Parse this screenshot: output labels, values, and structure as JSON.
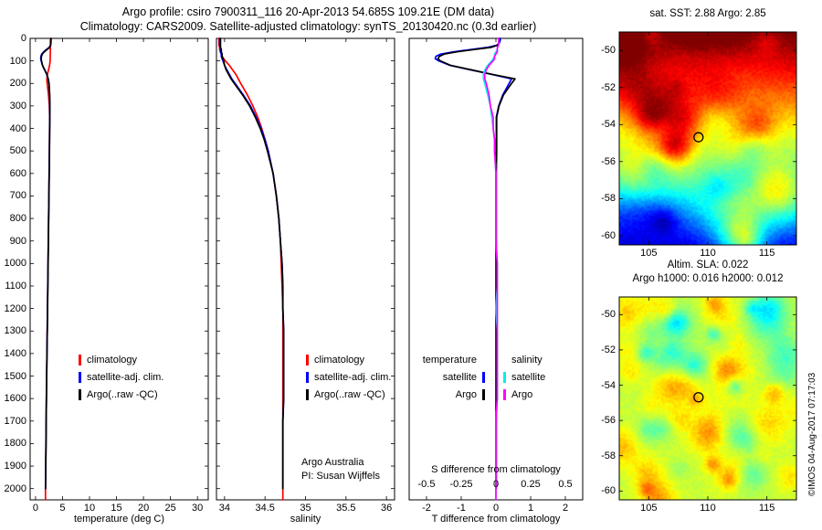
{
  "title": {
    "line1": "Argo profile: csiro 7900311_116 20-Apr-2013 54.685S 109.21E (DM data)",
    "line2": "Climatology: CARS2009. Satellite-adjusted climatology: synTS_20130420.nc (0.3d earlier)"
  },
  "watermark": "©IMOS 04-Aug-2017 07:17:03",
  "colors": {
    "climatology": "#ff0000",
    "satellite_adjusted": "#0000ff",
    "argo": "#000000",
    "salinity_satellite": "#00eeee",
    "salinity_argo": "#ff00ff"
  },
  "chart_data": [
    {
      "id": "temperature_profile",
      "type": "line",
      "xlabel": "temperature (deg C)",
      "ylabel": "",
      "xlim": [
        -1,
        32
      ],
      "ylim": [
        0,
        2050
      ],
      "xticks": [
        0,
        5,
        10,
        15,
        20,
        25,
        30
      ],
      "yticks": [
        0,
        100,
        200,
        300,
        400,
        500,
        600,
        700,
        800,
        900,
        1000,
        1100,
        1200,
        1300,
        1400,
        1500,
        1600,
        1700,
        1800,
        1900,
        2000
      ],
      "y_axis": "pressure (dbar), increasing downward",
      "legend": [
        "climatology",
        "satellite-adj. clim.",
        "Argo(..raw -QC)"
      ],
      "depths": [
        0,
        10,
        20,
        30,
        40,
        50,
        60,
        70,
        80,
        90,
        100,
        120,
        140,
        160,
        180,
        200,
        250,
        300,
        350,
        400,
        450,
        500,
        600,
        700,
        800,
        900,
        1000,
        1100,
        1200,
        1300,
        1400,
        1500,
        1600,
        1700,
        1800,
        1900,
        2000
      ],
      "series": [
        {
          "id": "climatology",
          "name": "climatology",
          "color": "#ff0000",
          "depth": [
            0,
            10,
            20,
            30,
            40,
            50,
            60,
            70,
            80,
            90,
            100,
            120,
            140,
            160,
            180,
            200,
            250,
            300,
            350,
            400,
            450,
            500,
            600,
            700,
            800,
            900,
            1000,
            1100,
            1200,
            1300,
            1400,
            1500,
            1600,
            1700,
            1800,
            1900,
            2000,
            2050
          ],
          "values": [
            2.75,
            2.75,
            2.75,
            2.75,
            2.75,
            2.75,
            2.74,
            2.74,
            2.73,
            2.72,
            2.7,
            2.6,
            2.4,
            2.2,
            2.1,
            2.15,
            2.4,
            2.56,
            2.62,
            2.6,
            2.58,
            2.56,
            2.52,
            2.47,
            2.42,
            2.37,
            2.32,
            2.27,
            2.22,
            2.17,
            2.11,
            2.06,
            2.01,
            1.97,
            1.93,
            1.89,
            1.85,
            1.84
          ]
        },
        {
          "id": "satellite_adj_clim",
          "name": "satellite-adj. clim.",
          "color": "#0000ff",
          "values": [
            2.88,
            2.87,
            2.85,
            2.78,
            2.5,
            2.0,
            1.5,
            1.15,
            1.0,
            0.97,
            1.05,
            1.28,
            1.68,
            2.08,
            2.33,
            2.49,
            2.6,
            2.64,
            2.63,
            2.61,
            2.59,
            2.57,
            2.52,
            2.47,
            2.42,
            2.37,
            2.32,
            2.27,
            2.22,
            2.17,
            2.11,
            2.06,
            2.01,
            1.97,
            1.93,
            1.89,
            1.85
          ]
        },
        {
          "id": "argo_raw_qc",
          "name": "Argo(..raw -QC)",
          "color": "#000000",
          "values": [
            2.85,
            2.84,
            2.83,
            2.8,
            2.6,
            2.1,
            1.6,
            1.25,
            1.1,
            1.05,
            1.1,
            1.3,
            1.7,
            2.1,
            2.35,
            2.5,
            2.62,
            2.65,
            2.64,
            2.62,
            2.6,
            2.58,
            2.53,
            2.48,
            2.43,
            2.38,
            2.33,
            2.28,
            2.23,
            2.18,
            2.12,
            2.07,
            2.02,
            1.98,
            1.94,
            1.9,
            1.86
          ]
        }
      ]
    },
    {
      "id": "salinity_profile",
      "type": "line",
      "xlabel": "salinity",
      "ylabel": "",
      "xlim": [
        33.9,
        36.1
      ],
      "ylim": [
        0,
        2050
      ],
      "xticks": [
        34,
        34.5,
        35,
        35.5,
        36
      ],
      "yticks": [
        0,
        100,
        200,
        300,
        400,
        500,
        600,
        700,
        800,
        900,
        1000,
        1100,
        1200,
        1300,
        1400,
        1500,
        1600,
        1700,
        1800,
        1900,
        2000
      ],
      "legend": [
        "climatology",
        "satellite-adj. clim.",
        "Argo(..raw -QC)"
      ],
      "annotations": [
        "Argo Australia",
        "PI: Susan Wijffels"
      ],
      "depths": [
        0,
        10,
        20,
        30,
        40,
        50,
        60,
        70,
        80,
        90,
        100,
        120,
        140,
        160,
        180,
        200,
        250,
        300,
        350,
        400,
        450,
        500,
        600,
        700,
        800,
        900,
        1000,
        1100,
        1200,
        1300,
        1400,
        1500,
        1600,
        1700,
        1800,
        1900,
        2000
      ],
      "series": [
        {
          "id": "climatology",
          "name": "climatology",
          "color": "#ff0000",
          "depth": [
            0,
            10,
            20,
            30,
            40,
            50,
            60,
            70,
            80,
            90,
            100,
            120,
            140,
            160,
            180,
            200,
            250,
            300,
            350,
            400,
            450,
            500,
            600,
            700,
            800,
            900,
            1000,
            1100,
            1200,
            1300,
            1400,
            1500,
            1600,
            1700,
            1800,
            1900,
            2000,
            2050
          ],
          "values": [
            33.93,
            33.93,
            33.93,
            33.93,
            33.94,
            33.94,
            33.95,
            33.96,
            33.97,
            33.99,
            34.01,
            34.06,
            34.1,
            34.14,
            34.17,
            34.2,
            34.28,
            34.35,
            34.41,
            34.46,
            34.5,
            34.54,
            34.6,
            34.64,
            34.67,
            34.69,
            34.7,
            34.71,
            34.72,
            34.72,
            34.72,
            34.72,
            34.72,
            34.72,
            34.72,
            34.72,
            34.72,
            34.72
          ]
        },
        {
          "id": "satellite_adj_clim",
          "name": "satellite-adj. clim.",
          "color": "#0000ff",
          "values": [
            33.94,
            33.94,
            33.94,
            33.94,
            33.95,
            33.95,
            33.95,
            33.96,
            33.96,
            33.97,
            33.98,
            34.0,
            34.03,
            34.06,
            34.09,
            34.13,
            34.23,
            34.32,
            34.39,
            34.45,
            34.5,
            34.54,
            34.6,
            34.64,
            34.67,
            34.69,
            34.71,
            34.72,
            34.72,
            34.73,
            34.73,
            34.73,
            34.73,
            34.72,
            34.72,
            34.72,
            34.72
          ]
        },
        {
          "id": "argo_raw_qc",
          "name": "Argo(..raw -QC)",
          "color": "#000000",
          "values": [
            33.95,
            33.95,
            33.95,
            33.95,
            33.95,
            33.96,
            33.96,
            33.97,
            33.97,
            33.98,
            33.99,
            34.0,
            34.02,
            34.05,
            34.08,
            34.12,
            34.22,
            34.31,
            34.38,
            34.44,
            34.49,
            34.53,
            34.6,
            34.64,
            34.67,
            34.69,
            34.71,
            34.72,
            34.72,
            34.73,
            34.73,
            34.73,
            34.73,
            34.72,
            34.72,
            34.72,
            34.72
          ]
        }
      ]
    },
    {
      "id": "difference_profile",
      "type": "line",
      "xlabel": "T difference from climatology",
      "xlabel_secondary": "S difference from climatology",
      "xlim": [
        -2.5,
        2.5
      ],
      "ylim": [
        0,
        2050
      ],
      "xticks": [
        -2,
        -1,
        0,
        1,
        2
      ],
      "xticks_secondary": [
        "-0.5",
        "-0.25",
        "0",
        "0.25",
        "0.5"
      ],
      "s_to_t_axis_scale": 4,
      "depths": [
        0,
        10,
        20,
        30,
        40,
        50,
        60,
        70,
        80,
        90,
        100,
        120,
        140,
        160,
        180,
        200,
        250,
        300,
        350,
        400,
        450,
        500,
        600,
        700,
        800,
        900,
        1000,
        1100,
        1200,
        1300,
        1400,
        1500,
        1600,
        1700,
        1800,
        1900,
        2000
      ],
      "legend_groups": [
        {
          "header": "temperature",
          "entries": [
            {
              "label": "satellite",
              "color": "#0000ff"
            },
            {
              "label": "Argo",
              "color": "#000000"
            }
          ]
        },
        {
          "header": "salinity",
          "entries": [
            {
              "label": "satellite",
              "color": "#00eeee"
            },
            {
              "label": "Argo",
              "color": "#ff00ff"
            }
          ]
        }
      ],
      "series": [
        {
          "id": "t_diff_satellite",
          "name": "temperature satellite",
          "axis": "T",
          "color": "#0000ff",
          "values": [
            0.13,
            0.12,
            0.1,
            0.03,
            -0.25,
            -0.75,
            -1.24,
            -1.59,
            -1.73,
            -1.75,
            -1.65,
            -1.32,
            -0.72,
            -0.12,
            0.45,
            0.38,
            0.2,
            0.08,
            0.01,
            0.01,
            0.01,
            0.01,
            0.0,
            0.0,
            0.0,
            0.0,
            0.0,
            0.0,
            0.0,
            0.0,
            0.0,
            0.0,
            0.0,
            0.0,
            0.0,
            0.0,
            0.0
          ]
        },
        {
          "id": "t_diff_argo",
          "name": "temperature Argo",
          "axis": "T",
          "color": "#000000",
          "values": [
            0.1,
            0.09,
            0.08,
            0.05,
            -0.15,
            -0.65,
            -1.14,
            -1.49,
            -1.63,
            -1.67,
            -1.6,
            -1.3,
            -0.7,
            -0.1,
            0.55,
            0.45,
            0.22,
            0.09,
            0.02,
            0.02,
            0.02,
            0.02,
            0.01,
            0.01,
            0.01,
            0.01,
            0.01,
            0.01,
            0.01,
            0.01,
            0.01,
            0.01,
            0.01,
            0.01,
            0.01,
            0.01,
            0.01
          ]
        },
        {
          "id": "s_diff_satellite",
          "name": "salinity satellite",
          "axis": "S",
          "color": "#00eeee",
          "depth": [
            0,
            10,
            20,
            30,
            40,
            50,
            60,
            70,
            80,
            90,
            100,
            120,
            140,
            160,
            180,
            200,
            250,
            300,
            350,
            400,
            450,
            500,
            600,
            700,
            800,
            900,
            1000,
            1100,
            1200,
            1300,
            1400,
            1500,
            1600,
            1700,
            1800,
            1900,
            2000,
            2050
          ],
          "values": [
            0.02,
            0.02,
            0.02,
            0.02,
            0.01,
            0.01,
            0.0,
            -0.01,
            -0.01,
            -0.02,
            -0.03,
            -0.06,
            -0.08,
            -0.09,
            -0.09,
            -0.08,
            -0.06,
            -0.04,
            -0.03,
            -0.02,
            -0.01,
            -0.01,
            0.0,
            0.0,
            0.0,
            0.0,
            0.01,
            0.01,
            0.0,
            0.01,
            0.01,
            0.01,
            0.01,
            0.0,
            0.0,
            0.0,
            0.0,
            0.0
          ]
        },
        {
          "id": "s_diff_argo",
          "name": "salinity Argo",
          "axis": "S",
          "color": "#ff00ff",
          "depth": [
            0,
            10,
            20,
            30,
            40,
            50,
            60,
            70,
            80,
            90,
            100,
            120,
            140,
            160,
            180,
            200,
            250,
            300,
            350,
            400,
            450,
            500,
            600,
            700,
            800,
            900,
            1000,
            1100,
            1200,
            1300,
            1400,
            1500,
            1600,
            1700,
            1800,
            1900,
            2000,
            2050
          ],
          "values": [
            0.02,
            0.02,
            0.02,
            0.02,
            0.01,
            0.01,
            0.01,
            0.0,
            -0.01,
            -0.01,
            -0.02,
            -0.05,
            -0.07,
            -0.08,
            -0.08,
            -0.07,
            -0.05,
            -0.04,
            -0.02,
            -0.02,
            -0.01,
            -0.01,
            0.0,
            0.0,
            0.0,
            0.0,
            0.01,
            0.01,
            0.01,
            0.01,
            0.01,
            0.01,
            0.01,
            0.0,
            0.0,
            0.0,
            0.0,
            0.0
          ]
        }
      ]
    },
    {
      "id": "sst_map",
      "type": "heatmap",
      "title": "sat. SST: 2.88  Argo: 2.85",
      "xlim": [
        102.5,
        117.5
      ],
      "ylim": [
        -49,
        -60.5
      ],
      "xticks": [
        105,
        110,
        115
      ],
      "yticks": [
        -50,
        -52,
        -54,
        -56,
        -58,
        -60
      ],
      "colormap": "jet",
      "profile_marker": {
        "lon": 109.21,
        "lat": -54.685
      },
      "visual": "sea-surface temperature field: warm dark red/orange in the north grading through yellow and green to cold cyan/blue in the south"
    },
    {
      "id": "sla_map",
      "type": "heatmap",
      "title_line1": "Altim. SLA: 0.022",
      "title_line2": "Argo h1000: 0.016 h2000: 0.012",
      "xlim": [
        102.5,
        117.5
      ],
      "ylim": [
        -49,
        -60.5
      ],
      "xticks": [
        105,
        110,
        115
      ],
      "yticks": [
        -50,
        -52,
        -54,
        -56,
        -58,
        -60
      ],
      "colormap": "jet",
      "profile_marker": {
        "lon": 109.21,
        "lat": -54.685
      },
      "visual": "sea-level anomaly field: mottled green/yellow eddies with scattered orange highs and cyan lows"
    }
  ]
}
